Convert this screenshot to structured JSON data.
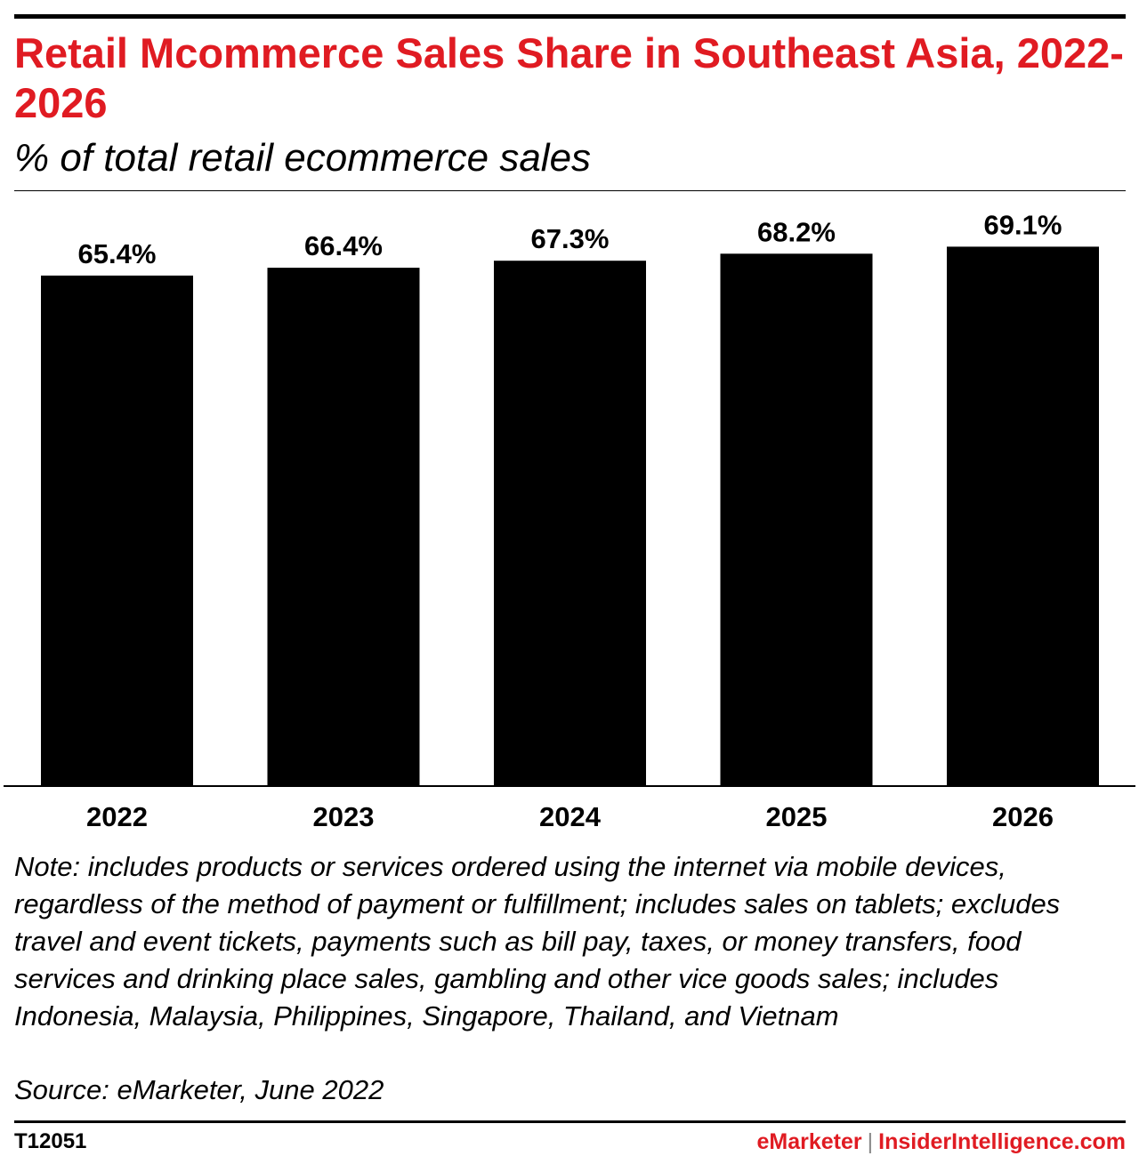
{
  "header": {
    "title": "Retail Mcommerce Sales Share in Southeast Asia, 2022-2026",
    "subtitle": "% of total retail ecommerce sales"
  },
  "chart_data": {
    "type": "bar",
    "categories": [
      "2022",
      "2023",
      "2024",
      "2025",
      "2026"
    ],
    "values": [
      65.4,
      66.4,
      67.3,
      68.2,
      69.1
    ],
    "data_labels": [
      "65.4%",
      "66.4%",
      "67.3%",
      "68.2%",
      "69.1%"
    ],
    "title": "Retail Mcommerce Sales Share in Southeast Asia, 2022-2026",
    "subtitle": "% of total retail ecommerce sales",
    "xlabel": "",
    "ylabel": "",
    "ylim": [
      0,
      74.5
    ],
    "grid": false,
    "bar_color": "#000000"
  },
  "footer": {
    "note": "Note: includes products or services ordered using the internet via mobile devices, regardless of the method of payment or fulfillment; includes sales on tablets; excludes travel and event tickets, payments such as bill pay, taxes, or money transfers, food services and drinking place sales, gambling and other vice goods sales; includes Indonesia, Malaysia, Philippines, Singapore, Thailand, and Vietnam",
    "source": "Source: eMarketer, June 2022",
    "chart_id": "T12051",
    "brand_primary": "eMarketer",
    "brand_separator": "|",
    "brand_secondary": "InsiderIntelligence.com"
  },
  "colors": {
    "accent": "#e01b22",
    "bars": "#000000"
  }
}
